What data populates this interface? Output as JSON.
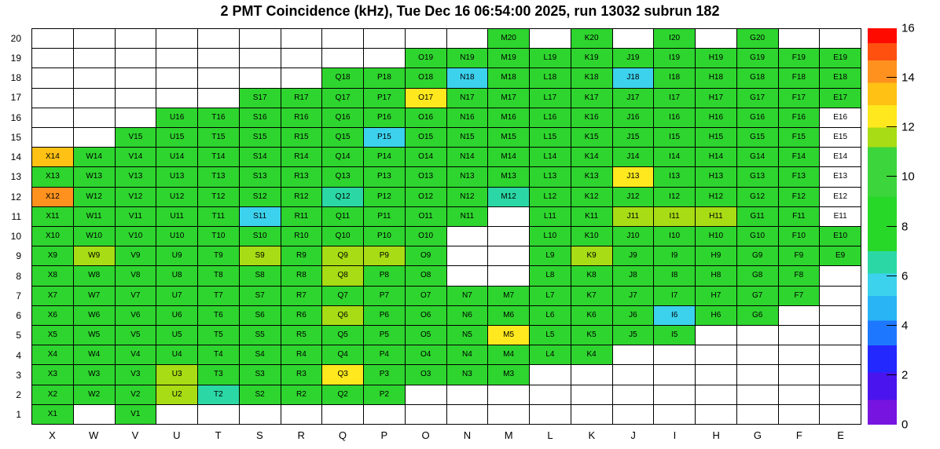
{
  "chart_data": {
    "type": "heatmap",
    "title": "2 PMT Coincidence (kHz), Tue Dec 16 06:54:00 2025, run 13032 subrun 182",
    "value_axis_label": "",
    "columns": [
      "X",
      "W",
      "V",
      "U",
      "T",
      "S",
      "R",
      "Q",
      "P",
      "O",
      "N",
      "M",
      "L",
      "K",
      "J",
      "I",
      "H",
      "G",
      "F",
      "E"
    ],
    "rows": [
      20,
      19,
      18,
      17,
      16,
      15,
      14,
      13,
      12,
      11,
      10,
      9,
      8,
      7,
      6,
      5,
      4,
      3,
      2,
      1
    ],
    "palette": {
      "g": "#2ed52e",
      "yg": "#a8dc14",
      "y": "#ffe81e",
      "am": "#ffc114",
      "o": "#ff911e",
      "c": "#3cd2ee",
      "t": "#2bd8a5",
      "w": "#ffffff"
    },
    "cells": [
      "M20:g",
      "K20:g",
      "I20:g",
      "G20:g",
      "O19:g",
      "N19:g",
      "M19:g",
      "L19:g",
      "K19:g",
      "J19:g",
      "I19:g",
      "H19:g",
      "G19:g",
      "F19:g",
      "E19:g",
      "Q18:g",
      "P18:g",
      "O18:g",
      "N18:c",
      "M18:g",
      "L18:g",
      "K18:g",
      "J18:c",
      "I18:g",
      "H18:g",
      "G18:g",
      "F18:g",
      "E18:g",
      "S17:g",
      "R17:g",
      "Q17:g",
      "P17:g",
      "O17:y",
      "N17:g",
      "M17:g",
      "L17:g",
      "K17:g",
      "J17:g",
      "I17:g",
      "H17:g",
      "G17:g",
      "F17:g",
      "E17:g",
      "U16:g",
      "T16:g",
      "S16:g",
      "R16:g",
      "Q16:g",
      "P16:g",
      "O16:g",
      "N16:g",
      "M16:g",
      "L16:g",
      "K16:g",
      "J16:g",
      "I16:g",
      "H16:g",
      "G16:g",
      "F16:g",
      "E16:w",
      "V15:g",
      "U15:g",
      "T15:g",
      "S15:g",
      "R15:g",
      "Q15:g",
      "P15:c",
      "O15:g",
      "N15:g",
      "M15:g",
      "L15:g",
      "K15:g",
      "J15:g",
      "I15:g",
      "H15:g",
      "G15:g",
      "F15:g",
      "E15:w",
      "X14:am",
      "W14:g",
      "V14:g",
      "U14:g",
      "T14:g",
      "S14:g",
      "R14:g",
      "Q14:g",
      "P14:g",
      "O14:g",
      "N14:g",
      "M14:g",
      "L14:g",
      "K14:g",
      "J14:g",
      "I14:g",
      "H14:g",
      "G14:g",
      "F14:g",
      "E14:w",
      "X13:g",
      "W13:g",
      "V13:g",
      "U13:g",
      "T13:g",
      "S13:g",
      "R13:g",
      "Q13:g",
      "P13:g",
      "O13:g",
      "N13:g",
      "M13:g",
      "L13:g",
      "K13:g",
      "J13:y",
      "I13:g",
      "H13:g",
      "G13:g",
      "F13:g",
      "E13:w",
      "X12:o",
      "W12:g",
      "V12:g",
      "U12:g",
      "T12:g",
      "S12:g",
      "R12:g",
      "Q12:t",
      "P12:g",
      "O12:g",
      "N12:g",
      "M12:t",
      "L12:g",
      "K12:g",
      "J12:g",
      "I12:g",
      "H12:g",
      "G12:g",
      "F12:g",
      "E12:w",
      "X11:g",
      "W11:g",
      "V11:g",
      "U11:g",
      "T11:g",
      "S11:c",
      "R11:g",
      "Q11:g",
      "P11:g",
      "O11:g",
      "N11:g",
      "L11:g",
      "K11:g",
      "J11:yg",
      "I11:yg",
      "H11:yg",
      "G11:g",
      "F11:g",
      "E11:w",
      "X10:g",
      "W10:g",
      "V10:g",
      "U10:g",
      "T10:g",
      "S10:g",
      "R10:g",
      "Q10:g",
      "P10:g",
      "O10:g",
      "L10:g",
      "K10:g",
      "J10:g",
      "I10:g",
      "H10:g",
      "G10:g",
      "F10:g",
      "E10:g",
      "X9:g",
      "W9:yg",
      "V9:g",
      "U9:g",
      "T9:g",
      "S9:yg",
      "R9:g",
      "Q9:yg",
      "P9:yg",
      "O9:g",
      "L9:g",
      "K9:yg",
      "J9:g",
      "I9:g",
      "H9:g",
      "G9:g",
      "F9:g",
      "E9:g",
      "X8:g",
      "W8:g",
      "V8:g",
      "U8:g",
      "T8:g",
      "S8:g",
      "R8:g",
      "Q8:yg",
      "P8:g",
      "O8:g",
      "L8:g",
      "K8:g",
      "J8:g",
      "I8:g",
      "H8:g",
      "G8:g",
      "F8:g",
      "X7:g",
      "W7:g",
      "V7:g",
      "U7:g",
      "T7:g",
      "S7:g",
      "R7:g",
      "Q7:g",
      "P7:g",
      "O7:g",
      "N7:g",
      "M7:g",
      "L7:g",
      "K7:g",
      "J7:g",
      "I7:g",
      "H7:g",
      "G7:g",
      "F7:g",
      "X6:g",
      "W6:g",
      "V6:g",
      "U6:g",
      "T6:g",
      "S6:g",
      "R6:g",
      "Q6:yg",
      "P6:g",
      "O6:g",
      "N6:g",
      "M6:g",
      "L6:g",
      "K6:g",
      "J6:g",
      "I6:c",
      "H6:g",
      "G6:g",
      "X5:g",
      "W5:g",
      "V5:g",
      "U5:g",
      "T5:g",
      "S5:g",
      "R5:g",
      "Q5:g",
      "P5:g",
      "O5:g",
      "N5:g",
      "M5:y",
      "L5:g",
      "K5:g",
      "J5:g",
      "I5:g",
      "X4:g",
      "W4:g",
      "V4:g",
      "U4:g",
      "T4:g",
      "S4:g",
      "R4:g",
      "Q4:g",
      "P4:g",
      "O4:g",
      "N4:g",
      "M4:g",
      "L4:g",
      "K4:g",
      "X3:g",
      "W3:g",
      "V3:g",
      "U3:yg",
      "T3:g",
      "S3:g",
      "R3:g",
      "Q3:y",
      "P3:g",
      "O3:g",
      "N3:g",
      "M3:g",
      "X2:g",
      "W2:g",
      "V2:g",
      "U2:yg",
      "T2:t",
      "S2:g",
      "R2:g",
      "Q2:g",
      "P2:g",
      "X1:g",
      "V1:g"
    ],
    "colorbar": {
      "min": 0,
      "max": 16,
      "tick_labels": [
        16,
        14,
        12,
        10,
        8,
        6,
        4,
        2,
        0
      ],
      "tick_marks": [
        2,
        4,
        6,
        8,
        10,
        12,
        14
      ],
      "bands": [
        {
          "to": 1.0,
          "color": "#7714e0"
        },
        {
          "to": 2.1,
          "color": "#4a14ee"
        },
        {
          "to": 3.2,
          "color": "#2328ff"
        },
        {
          "to": 4.2,
          "color": "#1e78ff"
        },
        {
          "to": 5.2,
          "color": "#28b4f5"
        },
        {
          "to": 6.1,
          "color": "#3cd2ee"
        },
        {
          "to": 7.0,
          "color": "#2bd8a5"
        },
        {
          "to": 9.2,
          "color": "#28d828"
        },
        {
          "to": 11.2,
          "color": "#3cd53c"
        },
        {
          "to": 12.0,
          "color": "#a8dc14"
        },
        {
          "to": 12.9,
          "color": "#ffe81e"
        },
        {
          "to": 13.8,
          "color": "#ffc114"
        },
        {
          "to": 14.7,
          "color": "#ff911e"
        },
        {
          "to": 15.4,
          "color": "#ff500f"
        },
        {
          "to": 16.0,
          "color": "#ff0a00"
        }
      ]
    }
  }
}
